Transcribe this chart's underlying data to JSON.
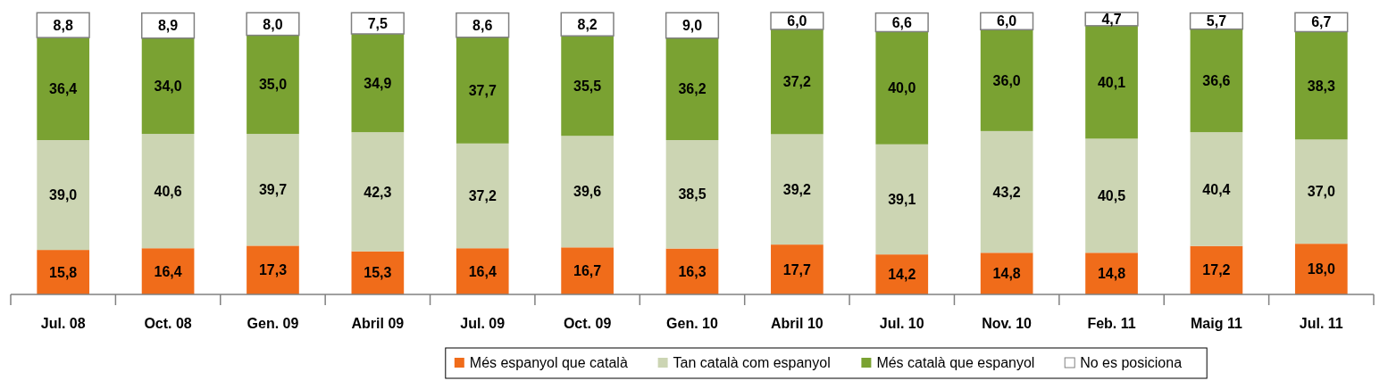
{
  "chart_data": {
    "type": "bar",
    "stacked": true,
    "legend": "bottom",
    "categories": [
      "Jul. 08",
      "Oct. 08",
      "Gen. 09",
      "Abril 09",
      "Jul. 09",
      "Oct. 09",
      "Gen. 10",
      "Abril 10",
      "Jul. 10",
      "Nov. 10",
      "Feb. 11",
      "Maig 11",
      "Jul. 11"
    ],
    "series": [
      {
        "name": "Més espanyol que català",
        "color": "#f06c1a",
        "values": [
          15.8,
          16.4,
          17.3,
          15.3,
          16.4,
          16.7,
          16.3,
          17.7,
          14.2,
          14.8,
          14.8,
          17.2,
          18.0
        ],
        "value_labels": [
          "15,8",
          "16,4",
          "17,3",
          "15,3",
          "16,4",
          "16,7",
          "16,3",
          "17,7",
          "14,2",
          "14,8",
          "14,8",
          "17,2",
          "18,0"
        ]
      },
      {
        "name": "Tan català com espanyol",
        "color": "#ccd5b3",
        "values": [
          39.0,
          40.6,
          39.7,
          42.3,
          37.2,
          39.6,
          38.5,
          39.2,
          39.1,
          43.2,
          40.5,
          40.4,
          37.0
        ],
        "value_labels": [
          "39,0",
          "40,6",
          "39,7",
          "42,3",
          "37,2",
          "39,6",
          "38,5",
          "39,2",
          "39,1",
          "43,2",
          "40,5",
          "40,4",
          "37,0"
        ]
      },
      {
        "name": "Més català que espanyol",
        "color": "#7aa232",
        "values": [
          36.4,
          34.0,
          35.0,
          34.9,
          37.7,
          35.5,
          36.2,
          37.2,
          40.0,
          36.0,
          40.1,
          36.6,
          38.3
        ],
        "value_labels": [
          "36,4",
          "34,0",
          "35,0",
          "34,9",
          "37,7",
          "35,5",
          "36,2",
          "37,2",
          "40,0",
          "36,0",
          "40,1",
          "36,6",
          "38,3"
        ]
      },
      {
        "name": "No es posiciona",
        "color": "#ffffff",
        "values": [
          8.8,
          8.9,
          8.0,
          7.5,
          8.6,
          8.2,
          9.0,
          6.0,
          6.6,
          6.0,
          4.7,
          5.7,
          6.7
        ],
        "value_labels": [
          "8,8",
          "8,9",
          "8,0",
          "7,5",
          "8,6",
          "8,2",
          "9,0",
          "6,0",
          "6,6",
          "6,0",
          "4,7",
          "5,7",
          "6,7"
        ]
      }
    ]
  }
}
